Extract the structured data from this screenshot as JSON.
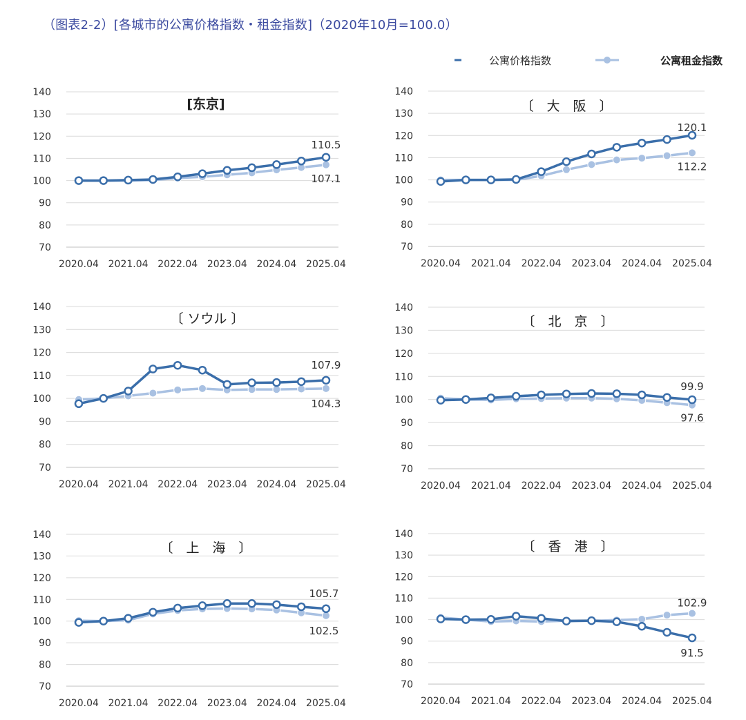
{
  "title": "（图表2-2）[各城市的公寓价格指数・租金指数]（2020年10月=100.0）",
  "legend": [
    {
      "name": "公寓价格指数",
      "color": "#3a6eaa"
    },
    {
      "name": "公寓租金指数",
      "color": "#a9c1e2"
    }
  ],
  "chart_data": [
    {
      "type": "line",
      "title": "[东京]",
      "xticks": [
        "2020.04",
        "2021.04",
        "2022.04",
        "2023.04",
        "2024.04",
        "2025.04"
      ],
      "yticks": [
        70,
        80,
        90,
        100,
        110,
        120,
        130,
        140
      ],
      "ylim": [
        70,
        140
      ],
      "series": [
        {
          "name": "公寓价格指数",
          "values": [
            100.0,
            100.0,
            100.2,
            100.5,
            101.7,
            103.1,
            104.6,
            105.8,
            107.2,
            108.8,
            110.5
          ],
          "end_label": "110.5"
        },
        {
          "name": "公寓租金指数",
          "values": [
            100.0,
            100.0,
            100.0,
            100.2,
            101.1,
            101.7,
            102.6,
            103.5,
            104.8,
            105.9,
            107.1
          ],
          "end_label": "107.1"
        }
      ]
    },
    {
      "type": "line",
      "title": "〔　大　阪　〕",
      "xticks": [
        "2020.04",
        "2021.04",
        "2022.04",
        "2023.04",
        "2024.04",
        "2025.04"
      ],
      "yticks": [
        70,
        80,
        90,
        100,
        110,
        120,
        130,
        140
      ],
      "ylim": [
        70,
        140
      ],
      "series": [
        {
          "name": "公寓价格指数",
          "values": [
            99.3,
            100.0,
            100.0,
            100.2,
            103.7,
            108.2,
            111.7,
            114.7,
            116.6,
            118.2,
            120.1
          ],
          "end_label": "120.1"
        },
        {
          "name": "公寓租金指数",
          "values": [
            100.0,
            100.0,
            100.0,
            100.0,
            101.8,
            104.6,
            106.9,
            109.0,
            109.8,
            110.9,
            112.2
          ],
          "end_label": "112.2"
        }
      ]
    },
    {
      "type": "line",
      "title": "〔 ソウル 〕",
      "xticks": [
        "2020.04",
        "2021.04",
        "2022.04",
        "2023.04",
        "2024.04",
        "2025.04"
      ],
      "yticks": [
        70,
        80,
        90,
        100,
        110,
        120,
        130,
        140
      ],
      "ylim": [
        70,
        140
      ],
      "series": [
        {
          "name": "公寓价格指数",
          "values": [
            97.7,
            100.0,
            103.2,
            112.8,
            114.4,
            112.3,
            106.1,
            106.8,
            106.9,
            107.3,
            107.9
          ],
          "end_label": "107.9"
        },
        {
          "name": "公寓租金指数",
          "values": [
            99.5,
            100.0,
            101.1,
            102.3,
            103.7,
            104.3,
            103.7,
            103.9,
            103.9,
            104.1,
            104.3
          ],
          "end_label": "104.3"
        }
      ]
    },
    {
      "type": "line",
      "title": "〔　北　京　〕",
      "xticks": [
        "2020.04",
        "2021.04",
        "2022.04",
        "2023.04",
        "2024.04",
        "2025.04"
      ],
      "yticks": [
        70,
        80,
        90,
        100,
        110,
        120,
        130,
        140
      ],
      "ylim": [
        70,
        140
      ],
      "series": [
        {
          "name": "公寓价格指数",
          "values": [
            99.7,
            100.0,
            100.7,
            101.4,
            102.0,
            102.4,
            102.6,
            102.5,
            102.0,
            100.9,
            99.9
          ],
          "end_label": "99.9"
        },
        {
          "name": "公寓租金指数",
          "values": [
            100.6,
            100.0,
            99.8,
            100.3,
            100.4,
            100.6,
            100.6,
            100.3,
            99.6,
            98.6,
            97.6
          ],
          "end_label": "97.6"
        }
      ]
    },
    {
      "type": "line",
      "title": "〔　上　海　〕",
      "xticks": [
        "2020.04",
        "2021.04",
        "2022.04",
        "2023.04",
        "2024.04",
        "2025.04"
      ],
      "yticks": [
        70,
        80,
        90,
        100,
        110,
        120,
        130,
        140
      ],
      "ylim": [
        70,
        140
      ],
      "series": [
        {
          "name": "公寓价格指数",
          "values": [
            99.4,
            100.0,
            101.3,
            104.1,
            106.0,
            107.1,
            108.1,
            108.1,
            107.6,
            106.6,
            105.7
          ],
          "end_label": "105.7"
        },
        {
          "name": "公寓租金指数",
          "values": [
            100.2,
            100.0,
            100.4,
            103.3,
            104.9,
            105.6,
            105.8,
            105.6,
            105.1,
            103.8,
            102.5
          ],
          "end_label": "102.5"
        }
      ]
    },
    {
      "type": "line",
      "title": "〔　香　港　〕",
      "xticks": [
        "2020.04",
        "2021.04",
        "2022.04",
        "2023.04",
        "2024.04",
        "2025.04"
      ],
      "yticks": [
        70,
        80,
        90,
        100,
        110,
        120,
        130,
        140
      ],
      "ylim": [
        70,
        140
      ],
      "series": [
        {
          "name": "公寓价格指数",
          "values": [
            100.3,
            100.0,
            100.1,
            101.6,
            100.6,
            99.3,
            99.5,
            99.0,
            96.9,
            94.1,
            91.5
          ],
          "end_label": "91.5"
        },
        {
          "name": "公寓租金指数",
          "values": [
            101.0,
            100.0,
            99.1,
            99.4,
            99.1,
            99.5,
            99.4,
            99.8,
            100.2,
            102.1,
            102.9
          ],
          "end_label": "102.9"
        }
      ]
    }
  ]
}
